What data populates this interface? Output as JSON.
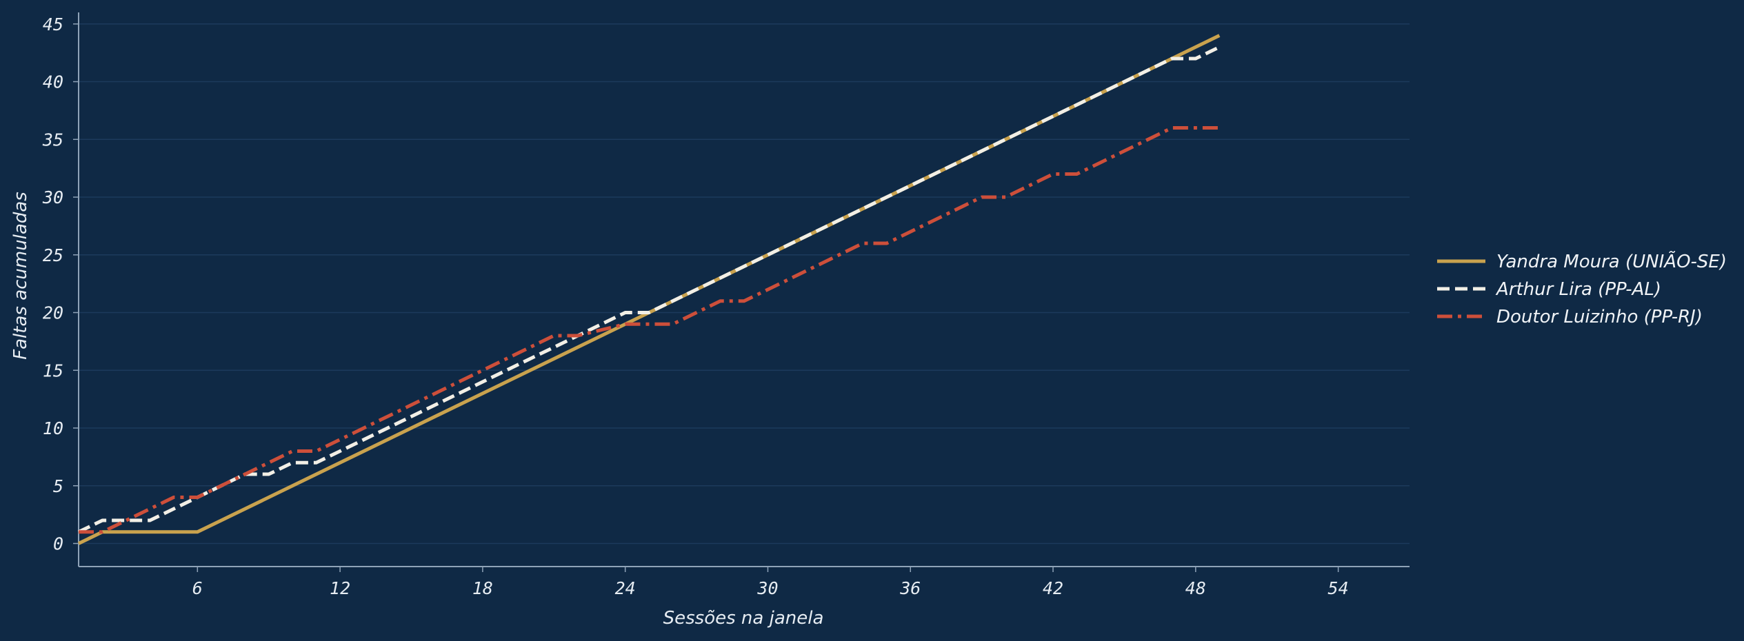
{
  "chart_data": {
    "type": "line",
    "xlabel": "Sessões na janela",
    "ylabel": "Faltas acumuladas",
    "xlim": [
      1,
      57
    ],
    "ylim": [
      -2,
      46
    ],
    "xticks": [
      6,
      12,
      18,
      24,
      30,
      36,
      42,
      48,
      54
    ],
    "yticks": [
      0,
      5,
      10,
      15,
      20,
      25,
      30,
      35,
      40,
      45
    ],
    "grid": "horizontal",
    "legend_position": "right",
    "background": "#0f2945",
    "series": [
      {
        "name": "Yandra Moura (UNIÃO-SE)",
        "color": "#c9a24e",
        "dash": "solid",
        "x": [
          1,
          2,
          3,
          4,
          5,
          6,
          49
        ],
        "y": [
          0,
          1,
          1,
          1,
          1,
          1,
          44
        ]
      },
      {
        "name": "Arthur Lira (PP-AL)",
        "color": "#f2efe6",
        "dash": "dashed",
        "x": [
          1,
          2,
          3,
          4,
          8,
          9,
          10,
          11,
          20,
          21,
          24,
          25,
          47,
          48,
          49
        ],
        "y": [
          1,
          2,
          2,
          2,
          6,
          6,
          7,
          7,
          16,
          17,
          20,
          20,
          42,
          42,
          43
        ]
      },
      {
        "name": "Doutor Luizinho (PP-RJ)",
        "color": "#cd4f3a",
        "dash": "dashdot",
        "x": [
          1,
          2,
          5,
          6,
          10,
          11,
          21,
          22,
          24,
          25,
          26,
          28,
          29,
          34,
          35,
          39,
          40,
          42,
          43,
          47,
          48,
          49
        ],
        "y": [
          1,
          1,
          4,
          4,
          8,
          8,
          18,
          18,
          19,
          19,
          19,
          21,
          21,
          26,
          26,
          30,
          30,
          32,
          32,
          36,
          36,
          36
        ]
      }
    ]
  }
}
